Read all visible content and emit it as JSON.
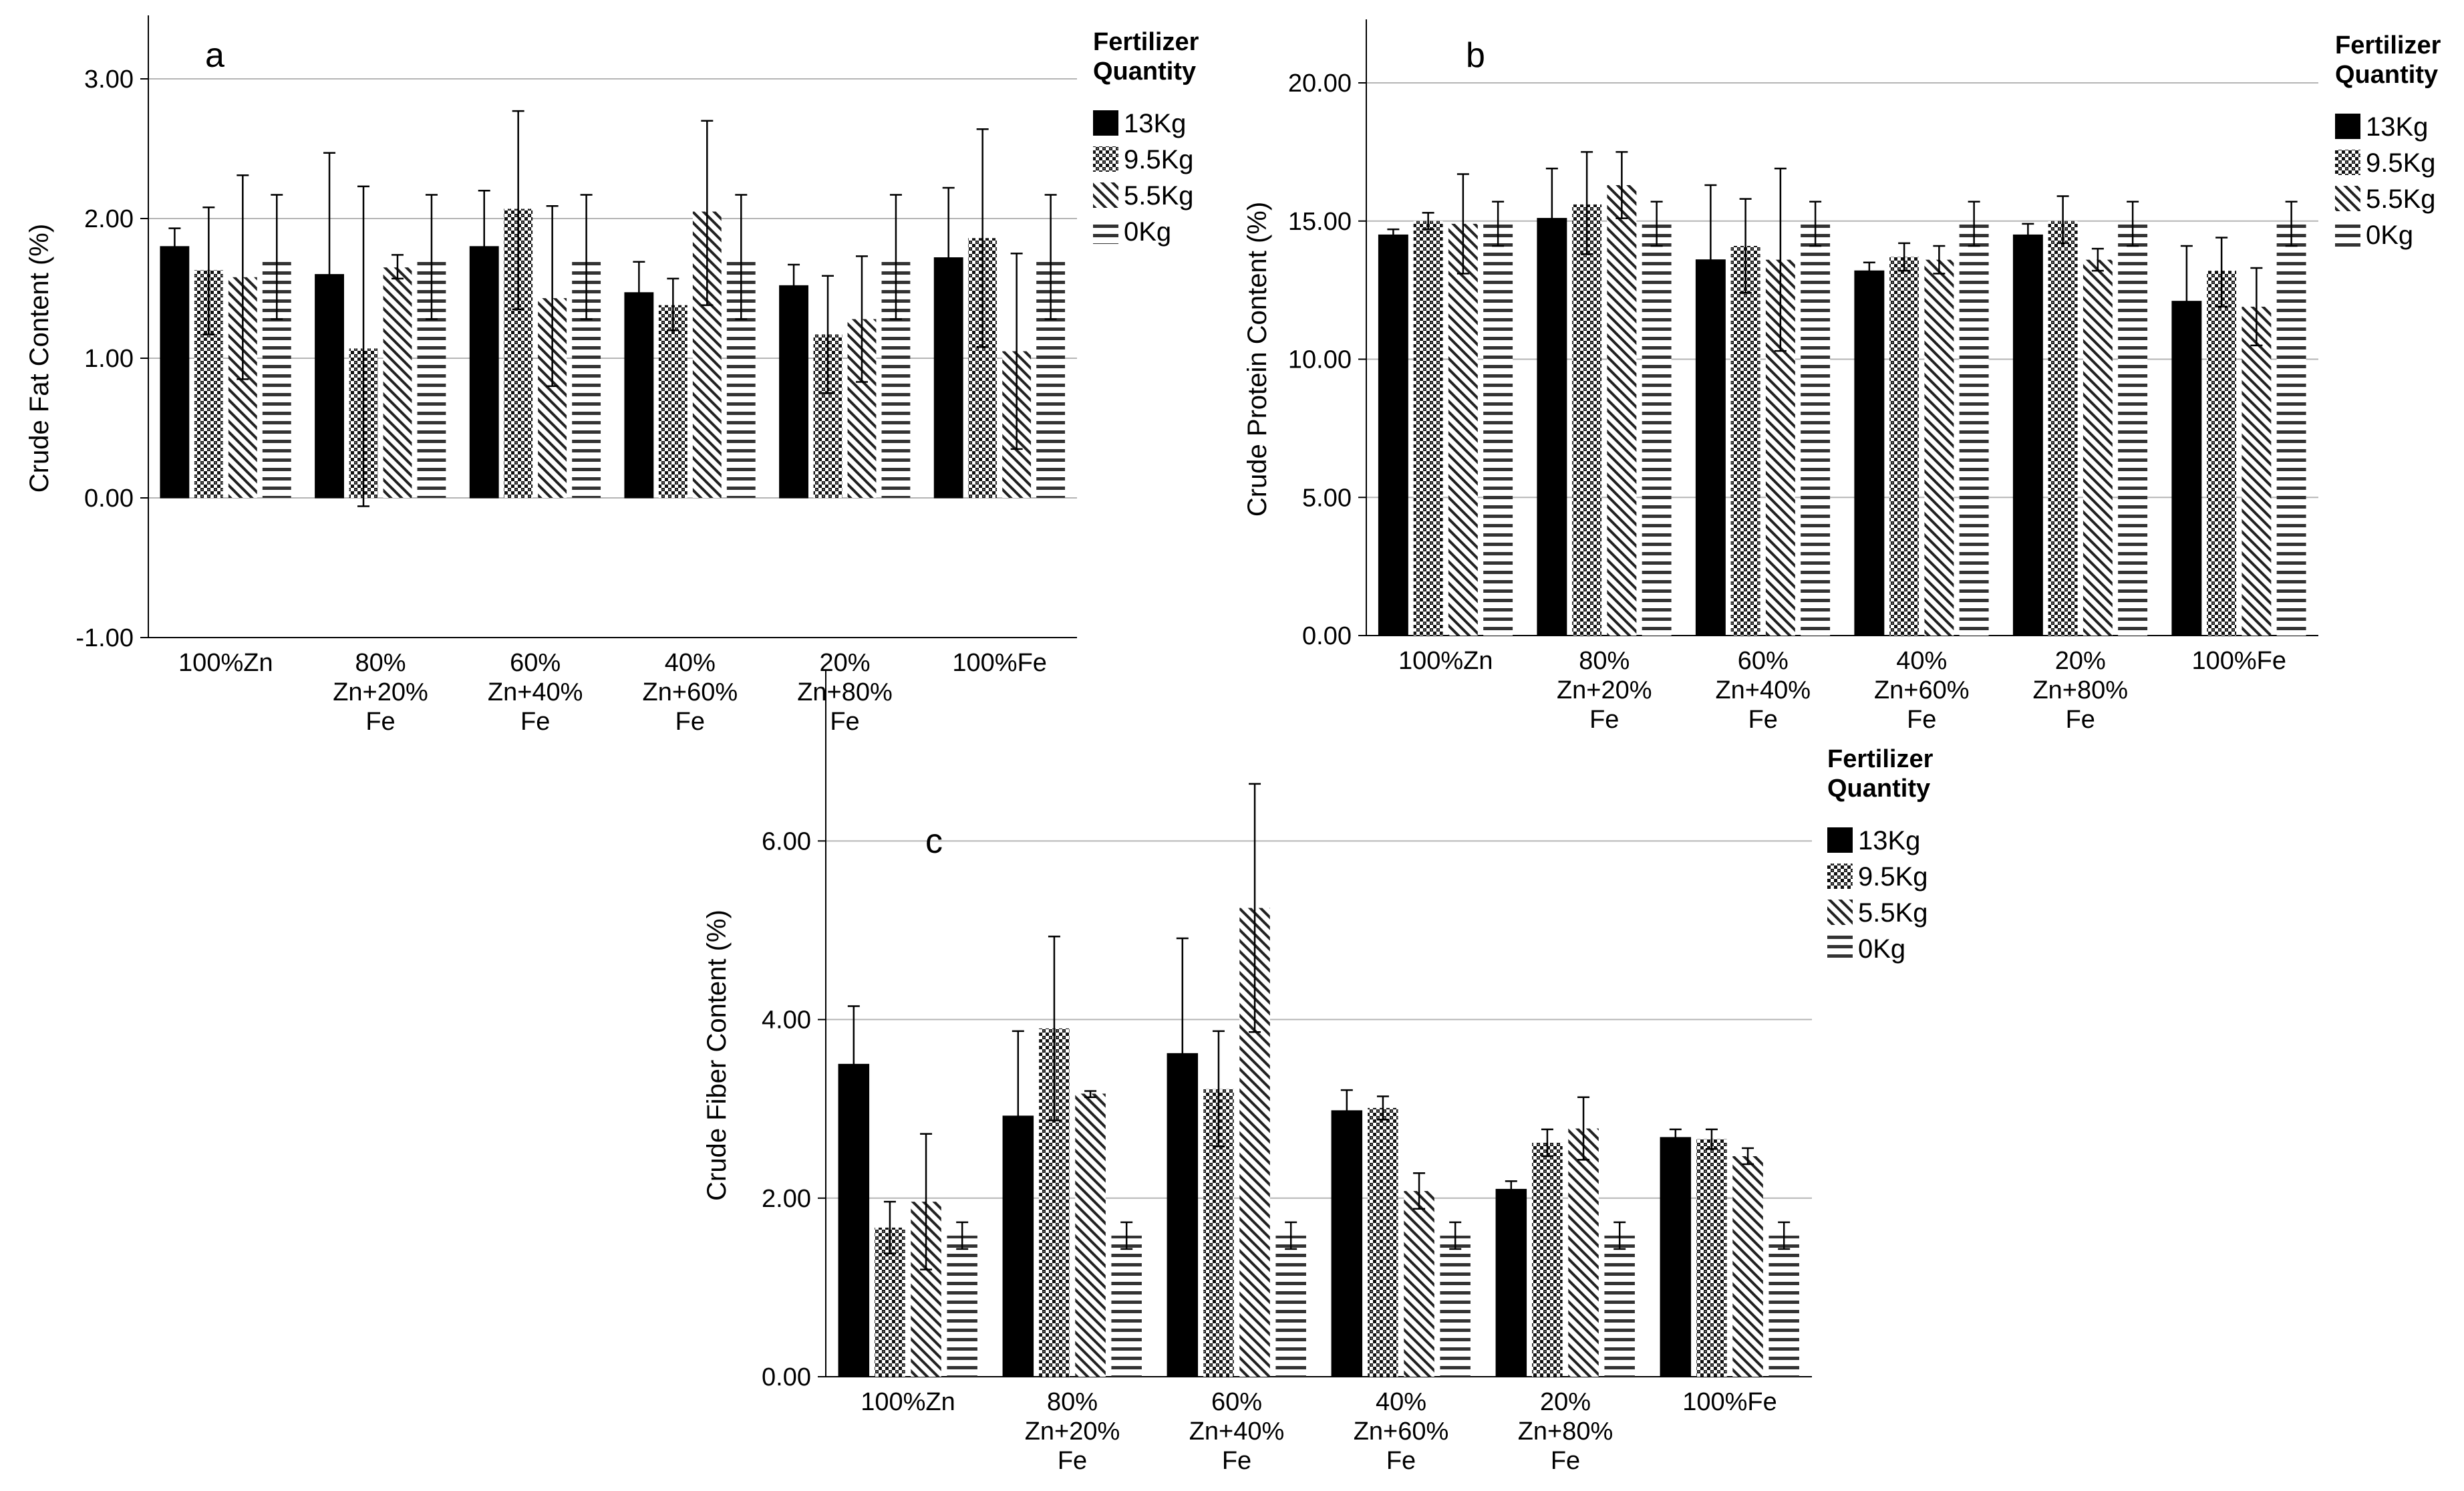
{
  "legend": {
    "title_line1": "Fertilizer",
    "title_line2": "Quantity",
    "entries": [
      "13Kg",
      "9.5Kg",
      "5.5Kg",
      "0Kg"
    ]
  },
  "chart_data": [
    {
      "type": "bar",
      "panel_label": "a",
      "ylabel": "Crude Fat Content (%)",
      "xlabel": "",
      "ylim": [
        -1.0,
        3.0
      ],
      "yticks": [
        "-1.00",
        "0.00",
        "1.00",
        "2.00",
        "3.00"
      ],
      "grid": true,
      "legend_position": "right",
      "categories": [
        [
          "100%Zn"
        ],
        [
          "80%",
          "Zn+20%",
          "Fe"
        ],
        [
          "60%",
          "Zn+40%",
          "Fe"
        ],
        [
          "40%",
          "Zn+60%",
          "Fe"
        ],
        [
          "20%",
          "Zn+80%",
          "Fe"
        ],
        [
          "100%Fe"
        ]
      ],
      "series": [
        {
          "name": "13Kg",
          "pattern": "solid",
          "values": [
            1.8,
            1.6,
            1.8,
            1.47,
            1.52,
            1.72
          ],
          "err_low": [
            1.67,
            0.75,
            1.4,
            1.25,
            1.35,
            1.2
          ],
          "err_high": [
            1.93,
            2.47,
            2.2,
            1.69,
            1.67,
            2.22
          ]
        },
        {
          "name": "9.5Kg",
          "pattern": "crosshatch",
          "values": [
            1.63,
            1.07,
            2.07,
            1.38,
            1.17,
            1.86
          ],
          "err_low": [
            1.17,
            -0.06,
            1.35,
            1.2,
            0.75,
            1.08
          ],
          "err_high": [
            2.08,
            2.23,
            2.77,
            1.57,
            1.59,
            2.64
          ]
        },
        {
          "name": "5.5Kg",
          "pattern": "diagonal",
          "values": [
            1.58,
            1.65,
            1.43,
            2.05,
            1.28,
            1.05
          ],
          "err_low": [
            0.85,
            1.57,
            0.8,
            1.38,
            0.83,
            0.35
          ],
          "err_high": [
            2.31,
            1.74,
            2.09,
            2.7,
            1.73,
            1.75
          ]
        },
        {
          "name": "0Kg",
          "pattern": "horizontal",
          "values": [
            1.72,
            1.72,
            1.72,
            1.72,
            1.72,
            1.72
          ],
          "err_low": [
            1.28,
            1.28,
            1.28,
            1.28,
            1.28,
            1.28
          ],
          "err_high": [
            2.17,
            2.17,
            2.17,
            2.17,
            2.17,
            2.17
          ]
        }
      ]
    },
    {
      "type": "bar",
      "panel_label": "b",
      "ylabel": "Crude Protein Content (%)",
      "xlabel": "",
      "ylim": [
        0.0,
        20.0
      ],
      "yticks": [
        "0.00",
        "5.00",
        "10.00",
        "15.00",
        "20.00"
      ],
      "grid": true,
      "legend_position": "right",
      "categories": [
        [
          "100%Zn"
        ],
        [
          "80%",
          "Zn+20%",
          "Fe"
        ],
        [
          "60%",
          "Zn+40%",
          "Fe"
        ],
        [
          "40%",
          "Zn+60%",
          "Fe"
        ],
        [
          "20%",
          "Zn+80%",
          "Fe"
        ],
        [
          "100%Fe"
        ]
      ],
      "series": [
        {
          "name": "13Kg",
          "pattern": "solid",
          "values": [
            14.5,
            15.1,
            13.6,
            13.2,
            14.5,
            12.1
          ],
          "err_low": [
            14.3,
            13.3,
            11.0,
            12.9,
            14.0,
            10.2
          ],
          "err_high": [
            14.7,
            16.9,
            16.3,
            13.5,
            14.9,
            14.1
          ]
        },
        {
          "name": "9.5Kg",
          "pattern": "crosshatch",
          "values": [
            15.0,
            15.6,
            14.1,
            13.7,
            15.0,
            13.2
          ],
          "err_low": [
            14.7,
            13.8,
            12.4,
            13.2,
            14.2,
            11.9
          ],
          "err_high": [
            15.3,
            17.5,
            15.8,
            14.2,
            15.9,
            14.4
          ]
        },
        {
          "name": "5.5Kg",
          "pattern": "diagonal",
          "values": [
            14.9,
            16.3,
            13.6,
            13.6,
            13.6,
            11.9
          ],
          "err_low": [
            13.1,
            15.1,
            10.3,
            13.1,
            13.2,
            10.5
          ],
          "err_high": [
            16.7,
            17.5,
            16.9,
            14.1,
            14.0,
            13.3
          ]
        },
        {
          "name": "0Kg",
          "pattern": "horizontal",
          "values": [
            14.9,
            14.9,
            14.9,
            14.9,
            14.9,
            14.9
          ],
          "err_low": [
            14.1,
            14.1,
            14.1,
            14.1,
            14.1,
            14.1
          ],
          "err_high": [
            15.7,
            15.7,
            15.7,
            15.7,
            15.7,
            15.7
          ]
        }
      ]
    },
    {
      "type": "bar",
      "panel_label": "c",
      "ylabel": "Crude Fiber Content (%)",
      "xlabel": "",
      "ylim": [
        0.0,
        7.2
      ],
      "yticks": [
        "0.00",
        "2.00",
        "4.00",
        "6.00"
      ],
      "grid": true,
      "legend_position": "right",
      "categories": [
        [
          "100%Zn"
        ],
        [
          "80%",
          "Zn+20%",
          "Fe"
        ],
        [
          "60%",
          "Zn+40%",
          "Fe"
        ],
        [
          "40%",
          "Zn+60%",
          "Fe"
        ],
        [
          "20%",
          "Zn+80%",
          "Fe"
        ],
        [
          "100%Fe"
        ]
      ],
      "series": [
        {
          "name": "13Kg",
          "pattern": "solid",
          "values": [
            3.5,
            2.92,
            3.62,
            2.98,
            2.1,
            2.68
          ],
          "err_low": [
            2.85,
            1.97,
            2.33,
            2.77,
            2.02,
            2.59
          ],
          "err_high": [
            4.15,
            3.87,
            4.91,
            3.21,
            2.19,
            2.77
          ]
        },
        {
          "name": "9.5Kg",
          "pattern": "crosshatch",
          "values": [
            1.67,
            3.9,
            3.22,
            3.01,
            2.62,
            2.66
          ],
          "err_low": [
            1.38,
            2.87,
            2.58,
            2.88,
            2.47,
            2.55
          ],
          "err_high": [
            1.96,
            4.93,
            3.87,
            3.14,
            2.77,
            2.77
          ]
        },
        {
          "name": "5.5Kg",
          "pattern": "diagonal",
          "values": [
            1.96,
            3.17,
            5.25,
            2.08,
            2.78,
            2.47
          ],
          "err_low": [
            1.2,
            3.13,
            3.86,
            1.88,
            2.43,
            2.38
          ],
          "err_high": [
            2.72,
            3.2,
            6.64,
            2.28,
            3.13,
            2.56
          ]
        },
        {
          "name": "0Kg",
          "pattern": "horizontal",
          "values": [
            1.58,
            1.58,
            1.58,
            1.58,
            1.58,
            1.58
          ],
          "err_low": [
            1.43,
            1.43,
            1.43,
            1.43,
            1.43,
            1.43
          ],
          "err_high": [
            1.73,
            1.73,
            1.73,
            1.73,
            1.73,
            1.73
          ]
        }
      ]
    }
  ]
}
